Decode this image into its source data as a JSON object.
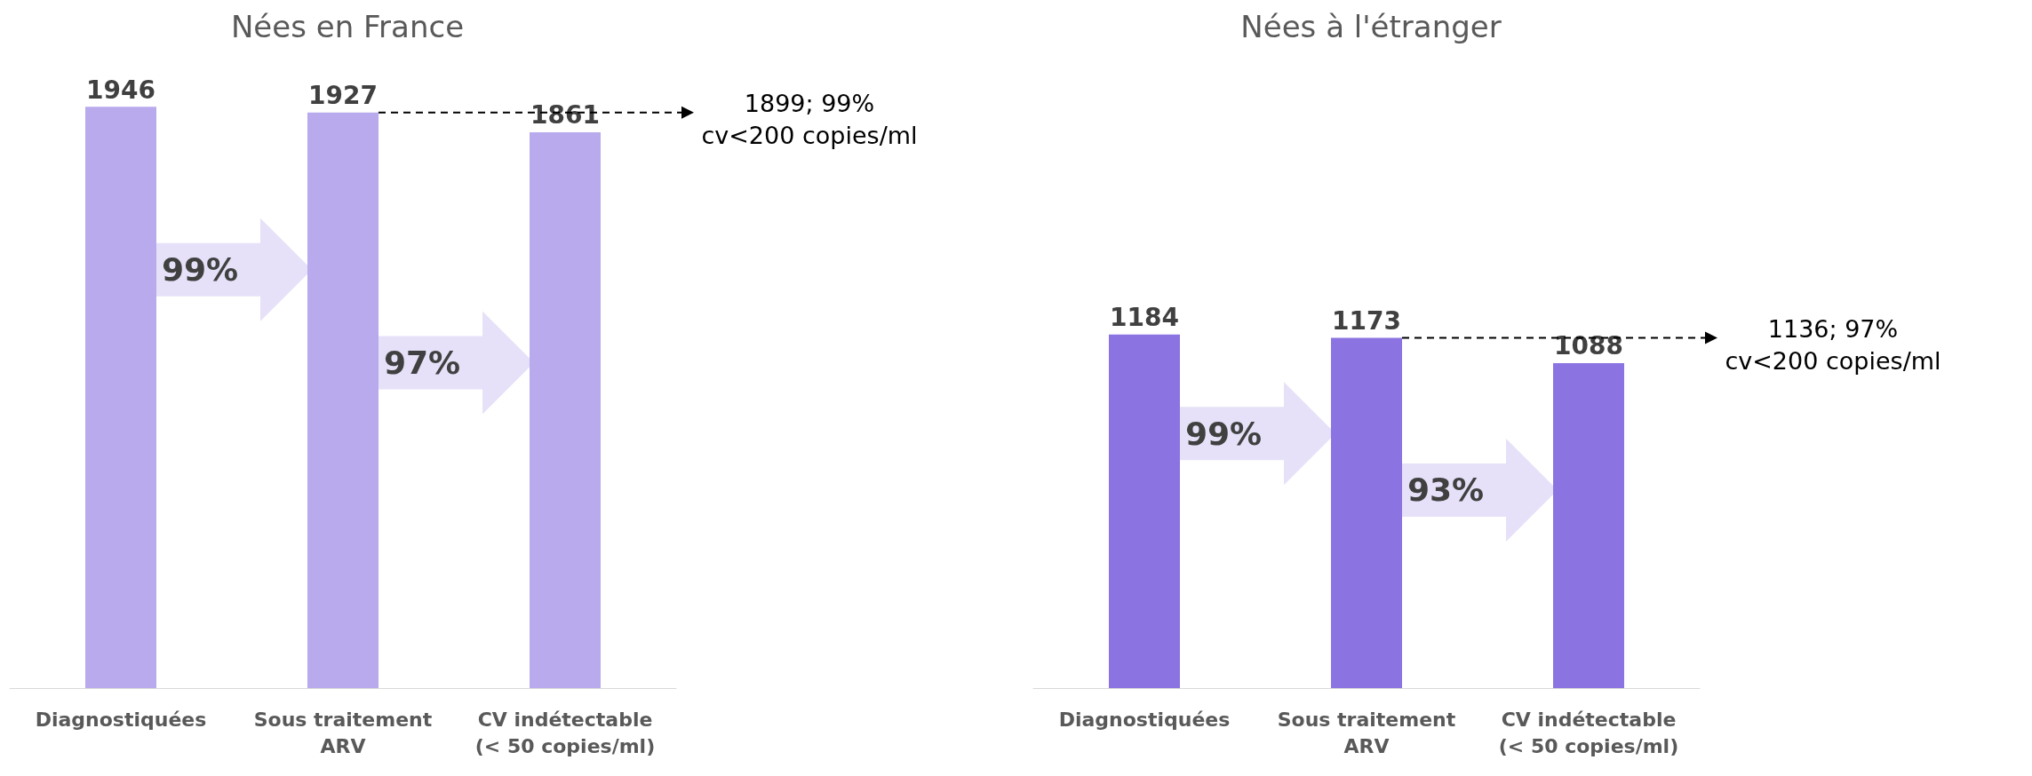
{
  "chart_data": [
    {
      "type": "bar",
      "title": "Nées en France",
      "categories": [
        "Diagnostiquées",
        "Sous traitement\nARV",
        "CV indétectable\n(< 50 copies/ml)"
      ],
      "values": [
        1946,
        1927,
        1861
      ],
      "color": "#b9aaee",
      "tick_labels": "x",
      "data_labels": true,
      "annotations": [
        "99%",
        "97%",
        "1899; 99%\ncv<200 copies/ml"
      ]
    },
    {
      "type": "bar",
      "title": "Nées à l'étranger",
      "categories": [
        "Diagnostiquées",
        "Sous traitement\nARV",
        "CV indétectable\n(< 50 copies/ml)"
      ],
      "values": [
        1184,
        1173,
        1088
      ],
      "color": "#8b74e2",
      "tick_labels": "x",
      "data_labels": true,
      "annotations": [
        "99%",
        "93%",
        "1136; 97%\ncv<200 copies/ml"
      ]
    }
  ]
}
